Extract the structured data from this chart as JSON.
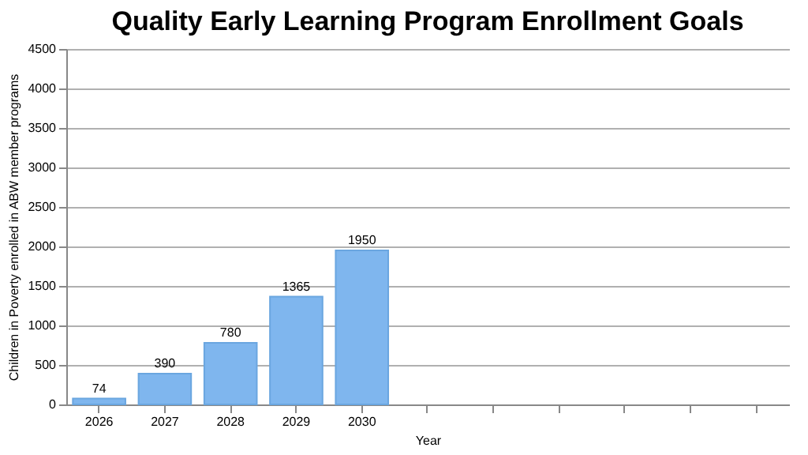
{
  "chart_data": {
    "type": "bar",
    "title": "Quality Early Learning Program Enrollment Goals",
    "xlabel": "Year",
    "ylabel": "Children in Poverty enrolled in ABW member programs",
    "categories": [
      "2026",
      "2027",
      "2028",
      "2029",
      "2030",
      null,
      null,
      null,
      null,
      null,
      null
    ],
    "values": [
      74,
      390,
      780,
      1365,
      1950,
      null,
      null,
      null,
      null,
      null,
      null
    ],
    "color": "#7fb6ee",
    "ylim": [
      0,
      4500
    ],
    "yticks": [
      0,
      500,
      1000,
      1500,
      2000,
      2500,
      3000,
      3500,
      4000,
      4500
    ],
    "grid": "y",
    "data_labels": true
  }
}
